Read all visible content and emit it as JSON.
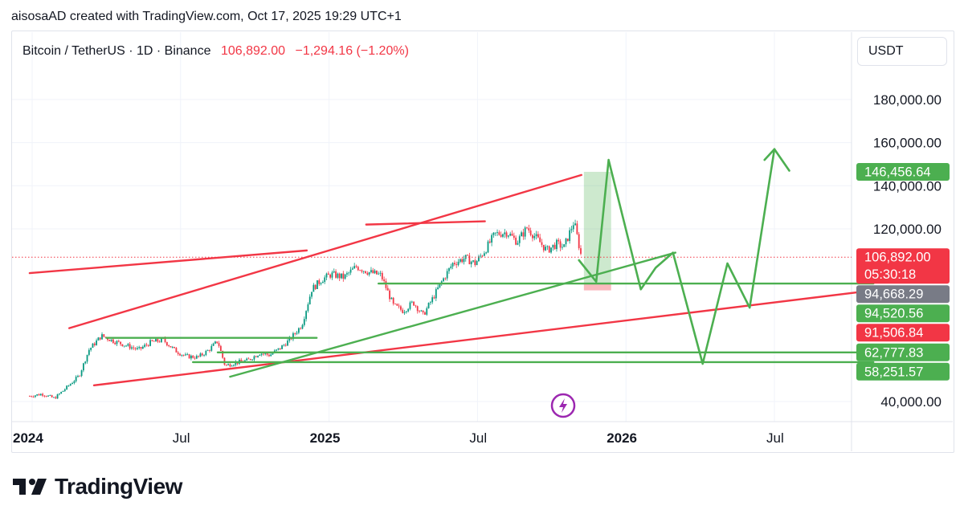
{
  "header": {
    "credit": "aisosaAD created with TradingView.com, Oct 17, 2025 19:29 UTC+1"
  },
  "legend": {
    "symbol": "Bitcoin / TetherUS · 1D · Binance",
    "price": "106,892.00",
    "change": "−1,294.16 (−1.20%)"
  },
  "currency_button": "USDT",
  "brand": {
    "name": "TradingView"
  },
  "colors": {
    "red": "#f23645",
    "green": "#4caf50",
    "grey": "#787b86",
    "axis_text": "#131722"
  },
  "chart_data": {
    "type": "candlestick",
    "title": "Bitcoin / TetherUS · 1D · Binance",
    "y_ticks": [
      {
        "value": 180000,
        "label": "180,000.00"
      },
      {
        "value": 160000,
        "label": "160,000.00"
      },
      {
        "value": 140000,
        "label": "140,000.00"
      },
      {
        "value": 120000,
        "label": "120,000.00"
      },
      {
        "value": 40000,
        "label": "40,000.00"
      }
    ],
    "x_ticks": [
      {
        "t": 0,
        "label": "2024",
        "bold": true
      },
      {
        "t": 6,
        "label": "Jul",
        "bold": false
      },
      {
        "t": 12,
        "label": "2025",
        "bold": true
      },
      {
        "t": 18,
        "label": "Jul",
        "bold": false
      },
      {
        "t": 24,
        "label": "2026",
        "bold": true
      },
      {
        "t": 30,
        "label": "Jul",
        "bold": false
      }
    ],
    "price_labels": [
      {
        "value": 146456.64,
        "label": "146,456.64",
        "color": "#4caf50"
      },
      {
        "value": 106892.0,
        "label": "106,892.00",
        "sub": "05:30:18",
        "color": "#f23645"
      },
      {
        "value": 94668.29,
        "label": "94,668.29",
        "color": "#787b86"
      },
      {
        "value": 94520.56,
        "label": "94,520.56",
        "color": "#4caf50"
      },
      {
        "value": 91506.84,
        "label": "91,506.84",
        "color": "#f23645"
      },
      {
        "value": 62777.83,
        "label": "62,777.83",
        "color": "#4caf50"
      },
      {
        "value": 58251.57,
        "label": "58,251.57",
        "color": "#4caf50"
      }
    ],
    "current_price": 106892.0,
    "price_path": [
      [
        -0.1,
        42500
      ],
      [
        0.4,
        43500
      ],
      [
        0.9,
        41500
      ],
      [
        1.3,
        45500
      ],
      [
        1.9,
        52000
      ],
      [
        2.3,
        64000
      ],
      [
        2.8,
        70500
      ],
      [
        3.3,
        68000
      ],
      [
        3.8,
        66000
      ],
      [
        4.3,
        64000
      ],
      [
        4.8,
        67500
      ],
      [
        5.3,
        68500
      ],
      [
        5.8,
        63500
      ],
      [
        6.2,
        61000
      ],
      [
        6.7,
        60500
      ],
      [
        7.1,
        63500
      ],
      [
        7.5,
        68000
      ],
      [
        7.8,
        56500
      ],
      [
        8.2,
        58000
      ],
      [
        8.7,
        59000
      ],
      [
        9.2,
        62500
      ],
      [
        9.6,
        61500
      ],
      [
        10.0,
        64500
      ],
      [
        10.4,
        68500
      ],
      [
        10.9,
        75500
      ],
      [
        11.3,
        92000
      ],
      [
        11.7,
        96500
      ],
      [
        12.1,
        99000
      ],
      [
        12.6,
        97500
      ],
      [
        13.1,
        102500
      ],
      [
        13.6,
        100000
      ],
      [
        14.1,
        98500
      ],
      [
        14.6,
        84500
      ],
      [
        15.0,
        82000
      ],
      [
        15.4,
        86000
      ],
      [
        15.8,
        80000
      ],
      [
        16.2,
        88000
      ],
      [
        16.5,
        94500
      ],
      [
        17.0,
        104000
      ],
      [
        17.5,
        106500
      ],
      [
        17.9,
        104000
      ],
      [
        18.3,
        110000
      ],
      [
        18.7,
        117500
      ],
      [
        19.2,
        118500
      ],
      [
        19.6,
        114000
      ],
      [
        20.0,
        120500
      ],
      [
        20.4,
        115500
      ],
      [
        20.8,
        110000
      ],
      [
        21.2,
        113000
      ],
      [
        21.5,
        111500
      ],
      [
        21.9,
        123500
      ],
      [
        22.2,
        106892
      ]
    ],
    "trend_lines_red": [
      {
        "from": [
          -0.1,
          99500
        ],
        "to": [
          11.1,
          110000
        ]
      },
      {
        "from": [
          1.5,
          74000
        ],
        "to": [
          22.2,
          145000
        ]
      },
      {
        "from": [
          13.5,
          122000
        ],
        "to": [
          18.3,
          123500
        ]
      },
      {
        "from": [
          2.5,
          47500
        ],
        "to": [
          34.0,
          91506.84
        ]
      }
    ],
    "trend_lines_green": [
      {
        "from": [
          3.0,
          69500
        ],
        "to": [
          11.5,
          69500
        ]
      },
      {
        "from": [
          14.0,
          94668.29
        ],
        "to": [
          34.0,
          94668.29
        ]
      },
      {
        "from": [
          7.5,
          62777.83
        ],
        "to": [
          34.0,
          62777.83
        ]
      },
      {
        "from": [
          6.5,
          58251.57
        ],
        "to": [
          34.0,
          58251.57
        ]
      },
      {
        "from": [
          8.0,
          51500
        ],
        "to": [
          26.0,
          109000
        ]
      }
    ],
    "projection_path": [
      [
        22.1,
        105500
      ],
      [
        22.8,
        95500
      ],
      [
        23.3,
        152000
      ],
      [
        24.6,
        92000
      ],
      [
        25.2,
        102000
      ],
      [
        25.9,
        109000
      ],
      [
        27.1,
        57500
      ],
      [
        28.1,
        104000
      ],
      [
        29.0,
        83500
      ],
      [
        30.0,
        157000
      ]
    ],
    "arrow_head": [
      [
        29.6,
        152000
      ],
      [
        30.0,
        157000
      ],
      [
        30.6,
        147000
      ]
    ],
    "target_zone": {
      "t0": 22.3,
      "t1": 23.4,
      "top": 146456.64,
      "bottom": 94668.29
    },
    "stop_zone": {
      "t0": 22.3,
      "t1": 23.4,
      "top": 94668.29,
      "bottom": 91506.84
    }
  }
}
